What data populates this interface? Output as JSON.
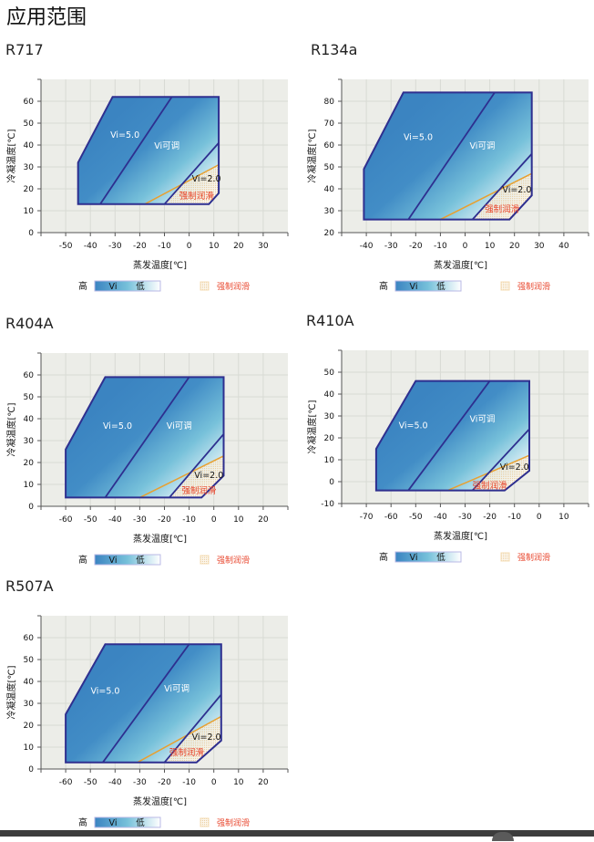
{
  "page_title": "应用范围",
  "colors": {
    "boundary": "#2e2f8f",
    "lubrication_line": "#e8a030",
    "lubrication_text": "#e8452c",
    "plot_bg": "#ecede8",
    "grid": "#d8dad4",
    "vi_high": "#3b84c1",
    "vi_mid": "#77c1da",
    "vi_low": "#ffffff"
  },
  "legend": {
    "high": "高",
    "vi": "Vi",
    "low": "低",
    "lubrication": "强制润滑"
  },
  "chart_data": [
    {
      "name": "R717",
      "type": "area",
      "xlabel": "蒸发温度[℃]",
      "ylabel": "冷凝温度[℃]",
      "xlim": [
        -60,
        40
      ],
      "ylim": [
        0,
        70
      ],
      "xticks": [
        -50,
        -40,
        -30,
        -20,
        -10,
        0,
        10,
        20,
        30
      ],
      "yticks": [
        0,
        10,
        20,
        30,
        40,
        50,
        60
      ],
      "grid": true,
      "envelope": [
        [
          -45,
          13
        ],
        [
          -45,
          32
        ],
        [
          -31,
          62
        ],
        [
          12,
          62
        ],
        [
          12,
          18
        ],
        [
          8,
          13
        ]
      ],
      "vi5_boundary": [
        [
          -36,
          13
        ],
        [
          -7,
          62
        ]
      ],
      "vi2_boundary": [
        [
          -10,
          13
        ],
        [
          12,
          41
        ]
      ],
      "lubrication_line": [
        [
          -18,
          13
        ],
        [
          12,
          31
        ]
      ],
      "annotations": [
        {
          "text": "Vi=5.0",
          "x": -26,
          "y": 45
        },
        {
          "text": "Vi可调",
          "x": -9,
          "y": 40
        },
        {
          "text": "Vi=2.0",
          "x": 7,
          "y": 25
        },
        {
          "text": "强制润滑",
          "x": 3,
          "y": 17
        }
      ]
    },
    {
      "name": "R134a",
      "type": "area",
      "xlabel": "蒸发温度[℃]",
      "ylabel": "冷凝温度[℃]",
      "xlim": [
        -50,
        50
      ],
      "ylim": [
        20,
        90
      ],
      "xticks": [
        -40,
        -30,
        -20,
        -10,
        0,
        10,
        20,
        30,
        40
      ],
      "yticks": [
        20,
        30,
        40,
        50,
        60,
        70,
        80
      ],
      "grid": true,
      "envelope": [
        [
          -41,
          26
        ],
        [
          -41,
          49
        ],
        [
          -25,
          84
        ],
        [
          27,
          84
        ],
        [
          27,
          37
        ],
        [
          18,
          26
        ]
      ],
      "vi5_boundary": [
        [
          -23,
          26
        ],
        [
          12,
          84
        ]
      ],
      "vi2_boundary": [
        [
          3,
          26
        ],
        [
          27,
          56
        ]
      ],
      "lubrication_line": [
        [
          -10,
          26
        ],
        [
          27,
          47
        ]
      ],
      "annotations": [
        {
          "text": "Vi=5.0",
          "x": -19,
          "y": 64
        },
        {
          "text": "Vi可调",
          "x": 7,
          "y": 60
        },
        {
          "text": "Vi=2.0",
          "x": 21,
          "y": 40
        },
        {
          "text": "强制润滑",
          "x": 15,
          "y": 31
        }
      ]
    },
    {
      "name": "R404A",
      "type": "area",
      "xlabel": "蒸发温度[℃]",
      "ylabel": "冷凝温度[℃]",
      "xlim": [
        -70,
        30
      ],
      "ylim": [
        0,
        70
      ],
      "xticks": [
        -60,
        -50,
        -40,
        -30,
        -20,
        -10,
        0,
        10,
        20
      ],
      "yticks": [
        0,
        10,
        20,
        30,
        40,
        50,
        60
      ],
      "grid": true,
      "envelope": [
        [
          -60,
          4
        ],
        [
          -60,
          26
        ],
        [
          -44,
          59
        ],
        [
          4,
          59
        ],
        [
          4,
          14
        ],
        [
          -5,
          4
        ]
      ],
      "vi5_boundary": [
        [
          -44,
          4
        ],
        [
          -10,
          59
        ]
      ],
      "vi2_boundary": [
        [
          -18,
          4
        ],
        [
          4,
          33
        ]
      ],
      "lubrication_line": [
        [
          -30,
          4
        ],
        [
          4,
          23
        ]
      ],
      "annotations": [
        {
          "text": "Vi=5.0",
          "x": -39,
          "y": 37
        },
        {
          "text": "Vi可调",
          "x": -14,
          "y": 37
        },
        {
          "text": "Vi=2.0",
          "x": -2,
          "y": 14.5
        },
        {
          "text": "强制润滑",
          "x": -6,
          "y": 7.5
        }
      ]
    },
    {
      "name": "R410A",
      "type": "area",
      "xlabel": "蒸发温度[℃]",
      "ylabel": "冷凝温度[℃]",
      "xlim": [
        -80,
        20
      ],
      "ylim": [
        -10,
        60
      ],
      "xticks": [
        -70,
        -60,
        -50,
        -40,
        -30,
        -20,
        -10,
        0,
        10
      ],
      "yticks": [
        -10,
        0,
        10,
        20,
        30,
        40,
        50
      ],
      "grid": true,
      "envelope": [
        [
          -66,
          -4
        ],
        [
          -66,
          15
        ],
        [
          -50,
          46
        ],
        [
          -4,
          46
        ],
        [
          -4,
          5
        ],
        [
          -14,
          -4
        ]
      ],
      "vi5_boundary": [
        [
          -53,
          -4
        ],
        [
          -20,
          46
        ]
      ],
      "vi2_boundary": [
        [
          -27,
          -4
        ],
        [
          -4,
          24
        ]
      ],
      "lubrication_line": [
        [
          -37,
          -4
        ],
        [
          -4,
          12
        ]
      ],
      "annotations": [
        {
          "text": "Vi=5.0",
          "x": -51,
          "y": 26
        },
        {
          "text": "Vi可调",
          "x": -23,
          "y": 29
        },
        {
          "text": "Vi=2.0",
          "x": -10,
          "y": 7
        },
        {
          "text": "强制润滑",
          "x": -20,
          "y": -1.5
        }
      ]
    },
    {
      "name": "R507A",
      "type": "area",
      "xlabel": "蒸发温度[℃]",
      "ylabel": "冷凝温度[℃]",
      "xlim": [
        -70,
        30
      ],
      "ylim": [
        0,
        70
      ],
      "xticks": [
        -60,
        -50,
        -40,
        -30,
        -20,
        -10,
        0,
        10,
        20
      ],
      "yticks": [
        0,
        10,
        20,
        30,
        40,
        50,
        60
      ],
      "grid": true,
      "envelope": [
        [
          -60,
          3
        ],
        [
          -60,
          25
        ],
        [
          -44,
          57
        ],
        [
          3,
          57
        ],
        [
          3,
          13
        ],
        [
          -7,
          3
        ]
      ],
      "vi5_boundary": [
        [
          -45,
          3
        ],
        [
          -10,
          57
        ]
      ],
      "vi2_boundary": [
        [
          -20,
          3
        ],
        [
          3,
          34
        ]
      ],
      "lubrication_line": [
        [
          -31,
          3
        ],
        [
          3,
          24
        ]
      ],
      "annotations": [
        {
          "text": "Vi=5.0",
          "x": -44,
          "y": 36
        },
        {
          "text": "Vi可调",
          "x": -15,
          "y": 37
        },
        {
          "text": "Vi=2.0",
          "x": -3,
          "y": 15
        },
        {
          "text": "强制润滑",
          "x": -11,
          "y": 8
        }
      ]
    }
  ]
}
